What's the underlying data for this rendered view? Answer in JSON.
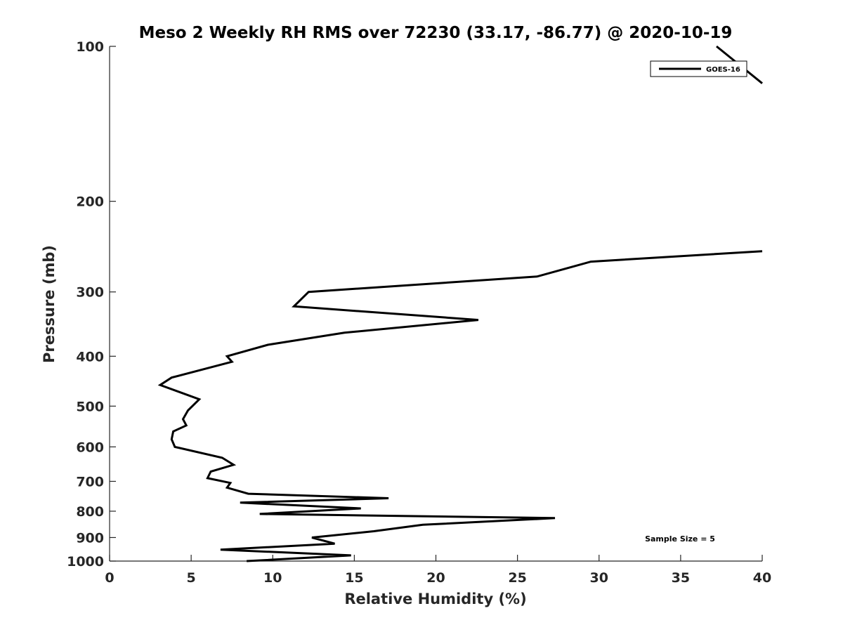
{
  "chart_data": {
    "type": "line",
    "title": "Meso 2 Weekly RH RMS over 72230 (33.17, -86.77) @ 2020-10-19",
    "xlabel": "Relative Humidity (%)",
    "ylabel": "Pressure (mb)",
    "xlim": [
      0,
      40
    ],
    "ylim": [
      100,
      1000
    ],
    "y_scale": "log",
    "y_reversed": true,
    "x_ticks": [
      "0",
      "5",
      "10",
      "15",
      "20",
      "25",
      "30",
      "35",
      "40"
    ],
    "y_ticks": [
      "100",
      "200",
      "300",
      "400",
      "500",
      "600",
      "700",
      "800",
      "900",
      "1000"
    ],
    "grid": false,
    "legend_position": "top-right",
    "annotation": "Sample Size = 5",
    "series": [
      {
        "name": "GOES-16",
        "color": "#000000",
        "points": [
          {
            "x": 8.4,
            "y": 1000
          },
          {
            "x": 14.8,
            "y": 975
          },
          {
            "x": 6.8,
            "y": 950
          },
          {
            "x": 13.8,
            "y": 925
          },
          {
            "x": 12.4,
            "y": 900
          },
          {
            "x": 16.2,
            "y": 875
          },
          {
            "x": 19.2,
            "y": 850
          },
          {
            "x": 27.3,
            "y": 825
          },
          {
            "x": 9.2,
            "y": 810
          },
          {
            "x": 15.4,
            "y": 790
          },
          {
            "x": 8.0,
            "y": 770
          },
          {
            "x": 17.1,
            "y": 755
          },
          {
            "x": 8.5,
            "y": 740
          },
          {
            "x": 7.2,
            "y": 720
          },
          {
            "x": 7.4,
            "y": 705
          },
          {
            "x": 6.0,
            "y": 690
          },
          {
            "x": 6.2,
            "y": 670
          },
          {
            "x": 7.6,
            "y": 650
          },
          {
            "x": 6.9,
            "y": 630
          },
          {
            "x": 4.0,
            "y": 600
          },
          {
            "x": 3.8,
            "y": 580
          },
          {
            "x": 3.9,
            "y": 560
          },
          {
            "x": 4.7,
            "y": 545
          },
          {
            "x": 4.5,
            "y": 530
          },
          {
            "x": 4.8,
            "y": 510
          },
          {
            "x": 5.5,
            "y": 485
          },
          {
            "x": 3.1,
            "y": 455
          },
          {
            "x": 3.8,
            "y": 440
          },
          {
            "x": 7.5,
            "y": 410
          },
          {
            "x": 7.2,
            "y": 400
          },
          {
            "x": 9.7,
            "y": 380
          },
          {
            "x": 14.4,
            "y": 360
          },
          {
            "x": 22.6,
            "y": 340
          },
          {
            "x": 11.3,
            "y": 320
          },
          {
            "x": 12.2,
            "y": 300
          },
          {
            "x": 26.2,
            "y": 280
          },
          {
            "x": 29.5,
            "y": 262
          },
          {
            "x": 40.0,
            "y": 250
          }
        ],
        "upper_segment": [
          {
            "x": 37.2,
            "y": 100
          },
          {
            "x": 40.0,
            "y": 118
          }
        ]
      }
    ]
  }
}
